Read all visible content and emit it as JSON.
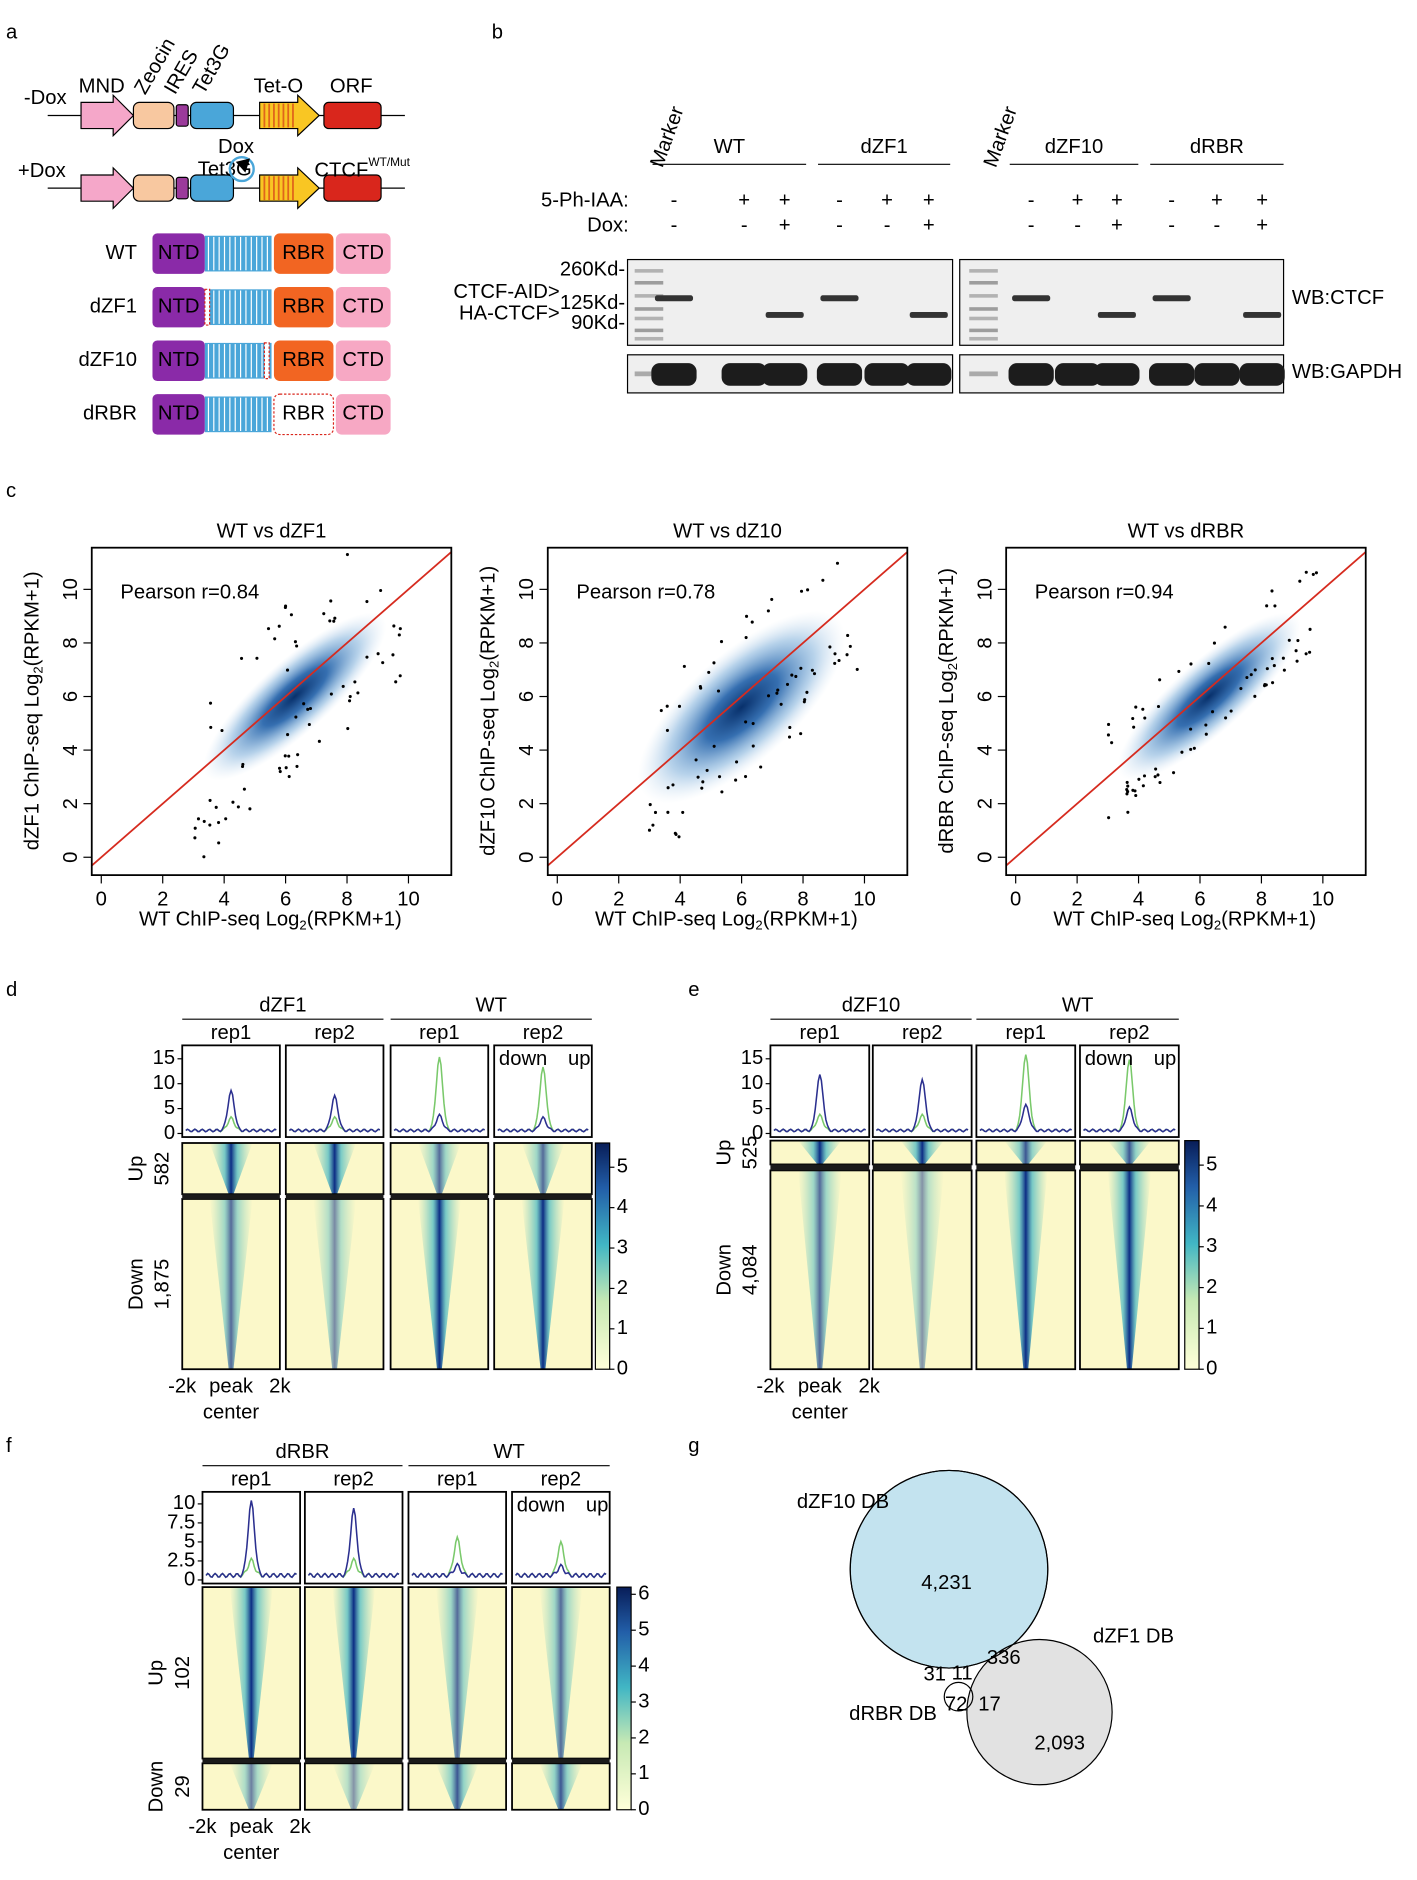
{
  "panel_labels": [
    "a",
    "b",
    "c",
    "d",
    "e",
    "f",
    "g"
  ],
  "a": {
    "minus_dox": "-Dox",
    "plus_dox": "+Dox",
    "elements": [
      "MND",
      "Zeocin",
      "IRES",
      "Tet3G",
      "Tet-O",
      "ORF"
    ],
    "dox": "Dox",
    "tet3g": "Tet3G",
    "ctcf": "CTCF",
    "ctcf_sup": "WT/Mut",
    "constructs": [
      {
        "name": "WT",
        "domains": [
          "NTD",
          "RBR",
          "CTD"
        ]
      },
      {
        "name": "dZF1",
        "domains": [
          "NTD",
          "RBR",
          "CTD"
        ]
      },
      {
        "name": "dZF10",
        "domains": [
          "NTD",
          "RBR",
          "CTD"
        ]
      },
      {
        "name": "dRBR",
        "domains": [
          "NTD",
          "RBR",
          "CTD"
        ]
      }
    ]
  },
  "b": {
    "markers": [
      "Marker",
      "Marker"
    ],
    "groups": [
      "WT",
      "dZF1",
      "dZF10",
      "dRBR"
    ],
    "row_labels": [
      "5-Ph-IAA:",
      "Dox:"
    ],
    "ph_iaa": [
      "-",
      "+",
      "+"
    ],
    "dox": [
      "-",
      "-",
      "+"
    ],
    "sizes": [
      "260Kd-",
      "125Kd-",
      "90Kd-"
    ],
    "bands": [
      "CTCF-AID>",
      "HA-CTCF>"
    ],
    "blots": [
      "WB:CTCF",
      "WB:GAPDH"
    ]
  },
  "c": {
    "plots": [
      {
        "title": "WT vs dZF1",
        "pearson": "Pearson r=0.84",
        "ylabel": "dZF1 ChIP-seq Log"
      },
      {
        "title": "WT vs dZ10",
        "pearson": "Pearson r=0.78",
        "ylabel": "dZF10 ChIP-seq Log"
      },
      {
        "title": "WT vs dRBR",
        "pearson": "Pearson r=0.94",
        "ylabel": "dRBR ChIP-seq Log"
      }
    ],
    "xlabel": "WT ChIP-seq Log",
    "subscript": "2",
    "suffix": "(RPKM+1)",
    "xticks": [
      0,
      2,
      4,
      6,
      8,
      10
    ],
    "yticks": [
      0,
      2,
      4,
      6,
      8,
      10
    ]
  },
  "d": {
    "groups": [
      "dZF1",
      "WT"
    ],
    "reps": [
      "rep1",
      "rep2"
    ],
    "yticks": [
      0,
      5,
      10,
      15
    ],
    "legend": [
      "down",
      "up"
    ],
    "rows": [
      {
        "label": "Up",
        "count": "582"
      },
      {
        "label": "Down",
        "count": "1,875"
      }
    ],
    "colorbar_ticks": [
      0,
      1,
      2,
      3,
      4,
      5
    ],
    "x_labels": [
      "-2k",
      "peak",
      "2k"
    ],
    "x_sub": "center"
  },
  "e": {
    "groups": [
      "dZF10",
      "WT"
    ],
    "reps": [
      "rep1",
      "rep2"
    ],
    "yticks": [
      0,
      5,
      10,
      15
    ],
    "legend": [
      "down",
      "up"
    ],
    "rows": [
      {
        "label": "Up",
        "count": "525"
      },
      {
        "label": "Down",
        "count": "4,084"
      }
    ],
    "colorbar_ticks": [
      0,
      1,
      2,
      3,
      4,
      5
    ],
    "x_labels": [
      "-2k",
      "peak",
      "2k"
    ],
    "x_sub": "center"
  },
  "f": {
    "groups": [
      "dRBR",
      "WT"
    ],
    "reps": [
      "rep1",
      "rep2"
    ],
    "yticks": [
      0,
      2.5,
      5,
      7.5,
      10
    ],
    "legend": [
      "down",
      "up"
    ],
    "rows": [
      {
        "label": "Up",
        "count": "102"
      },
      {
        "label": "Down",
        "count": "29"
      }
    ],
    "colorbar_ticks": [
      0,
      1,
      2,
      3,
      4,
      5,
      6
    ],
    "x_labels": [
      "-2k",
      "peak",
      "2k"
    ],
    "x_sub": "center"
  },
  "g": {
    "sets": [
      "dZF10 DB",
      "dZF1 DB",
      "dRBR DB"
    ],
    "counts": [
      "4,231",
      "336",
      "2,093",
      "31",
      "11",
      "72",
      "17"
    ]
  }
}
